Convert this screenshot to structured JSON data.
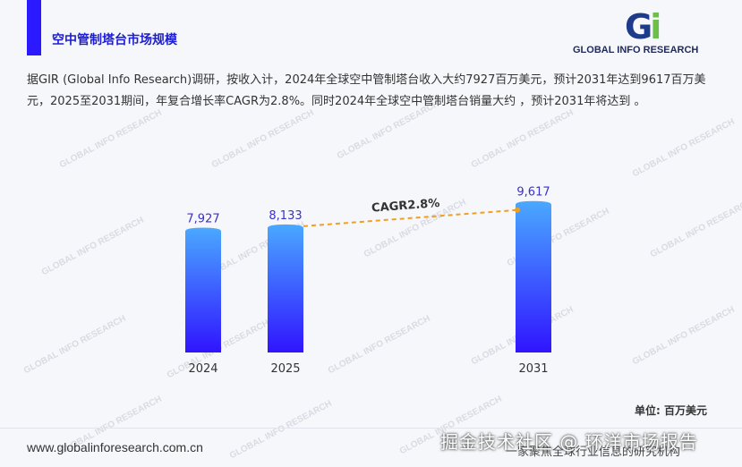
{
  "header": {
    "title": "空中管制塔台市场规模",
    "accent_color": "#2b1aff"
  },
  "logo": {
    "mark": "Gi",
    "text": "GLOBAL INFO RESEARCH"
  },
  "description": "据GIR (Global Info Research)调研，按收入计，2024年全球空中管制塔台收入大约7927百万美元，预计2031年达到9617百万美元，2025至2031期间，年复合增长率CAGR为2.8%。同时2024年全球空中管制塔台销量大约 ，预计2031年将达到 。",
  "chart_data": {
    "type": "bar",
    "categories": [
      "2024",
      "2025",
      "2031"
    ],
    "values": [
      7927,
      8133,
      9617
    ],
    "value_labels": [
      "7,927",
      "8,133",
      "9,617"
    ],
    "annotation": "CAGR2.8%",
    "unit_label": "单位: 百万美元",
    "gradient_top": "#4aa8ff",
    "gradient_bottom": "#3014ff",
    "value_label_color": "#3a2fd0",
    "cagr_line_color": "#f0a020"
  },
  "footer": {
    "url": "www.globalinforesearch.com.cn",
    "tagline": "一家聚焦全球行业信息的研究机构",
    "overlay": "掘金技术社区 @ 环洋市场报告"
  }
}
